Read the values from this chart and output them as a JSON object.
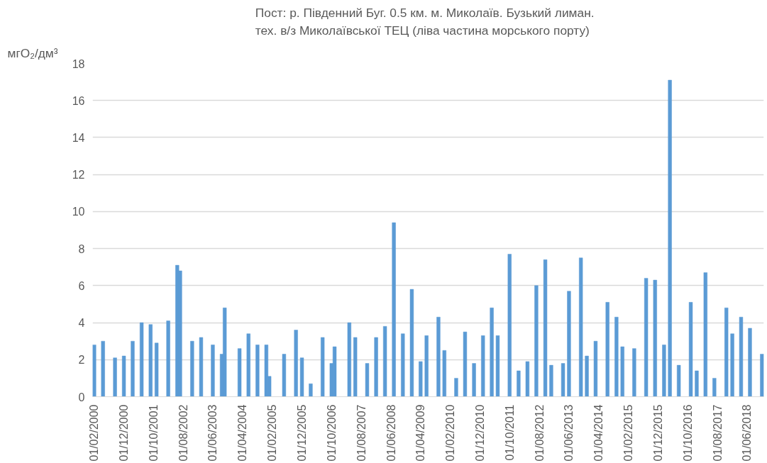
{
  "chart_data": {
    "type": "bar",
    "title": "Пост: р. Південний  Буг. 0.5 км. м. Миколаїв.  Бузький лиман.\nтех. в/з Миколаївської ТЕЦ (ліва частина морського порту)",
    "ylabel": "мгО₂/дм³",
    "x": [
      "2000-02",
      "2000-05",
      "2000-09",
      "2000-12",
      "2001-03",
      "2001-06",
      "2001-09",
      "2001-11",
      "2002-03",
      "2002-06",
      "2002-07",
      "2002-11",
      "2003-02",
      "2003-06",
      "2003-09",
      "2003-10",
      "2004-03",
      "2004-06",
      "2004-09",
      "2004-12",
      "2005-01",
      "2005-06",
      "2005-10",
      "2005-12",
      "2006-03",
      "2006-07",
      "2006-10",
      "2006-11",
      "2007-04",
      "2007-06",
      "2007-10",
      "2008-01",
      "2008-04",
      "2008-07",
      "2008-10",
      "2009-01",
      "2009-04",
      "2009-06",
      "2009-10",
      "2009-12",
      "2010-04",
      "2010-07",
      "2010-10",
      "2011-01",
      "2011-04",
      "2011-06",
      "2011-10",
      "2012-01",
      "2012-04",
      "2012-07",
      "2012-10",
      "2012-12",
      "2013-04",
      "2013-06",
      "2013-10",
      "2013-12",
      "2014-03",
      "2014-07",
      "2014-10",
      "2014-12",
      "2015-04",
      "2015-08",
      "2015-11",
      "2016-02",
      "2016-04",
      "2016-07",
      "2016-11",
      "2017-01",
      "2017-04",
      "2017-07",
      "2017-11",
      "2018-01",
      "2018-04",
      "2018-07",
      "2018-11"
    ],
    "values": [
      2.8,
      3.0,
      2.1,
      2.2,
      3.0,
      4.0,
      3.9,
      2.9,
      4.1,
      7.1,
      6.8,
      3.0,
      3.2,
      2.8,
      2.3,
      4.8,
      2.6,
      3.4,
      2.8,
      2.8,
      1.1,
      2.3,
      3.6,
      2.1,
      0.7,
      3.2,
      1.8,
      2.7,
      4.0,
      3.2,
      1.8,
      3.2,
      3.8,
      9.4,
      3.4,
      5.8,
      1.9,
      3.3,
      4.3,
      2.5,
      1.0,
      3.5,
      1.8,
      3.3,
      4.8,
      3.3,
      7.7,
      1.4,
      1.9,
      6.0,
      7.4,
      1.7,
      1.8,
      5.7,
      7.5,
      2.2,
      3.0,
      5.1,
      4.3,
      2.7,
      2.6,
      6.4,
      6.3,
      2.8,
      17.1,
      1.7,
      5.1,
      1.4,
      6.7,
      1.0,
      4.8,
      3.4,
      4.3,
      3.7,
      2.3
    ],
    "color": "#5b9bd5",
    "xlim": [
      "2000-01-15",
      "2018-11-20"
    ],
    "xticks": [
      {
        "value": "2000-02-01",
        "label": "01/02/2000"
      },
      {
        "value": "2000-12-01",
        "label": "01/12/2000"
      },
      {
        "value": "2001-10-01",
        "label": "01/10/2001"
      },
      {
        "value": "2002-08-01",
        "label": "01/08/2002"
      },
      {
        "value": "2003-06-01",
        "label": "01/06/2003"
      },
      {
        "value": "2004-04-01",
        "label": "01/04/2004"
      },
      {
        "value": "2005-02-01",
        "label": "01/02/2005"
      },
      {
        "value": "2005-12-01",
        "label": "01/12/2005"
      },
      {
        "value": "2006-10-01",
        "label": "01/10/2006"
      },
      {
        "value": "2007-08-01",
        "label": "01/08/2007"
      },
      {
        "value": "2008-06-01",
        "label": "01/06/2008"
      },
      {
        "value": "2009-04-01",
        "label": "01/04/2009"
      },
      {
        "value": "2010-02-01",
        "label": "01/02/2010"
      },
      {
        "value": "2010-12-01",
        "label": "01/12/2010"
      },
      {
        "value": "2011-10-01",
        "label": "01/10/2011"
      },
      {
        "value": "2012-08-01",
        "label": "01/08/2012"
      },
      {
        "value": "2013-06-01",
        "label": "01/06/2013"
      },
      {
        "value": "2014-04-01",
        "label": "01/04/2014"
      },
      {
        "value": "2015-02-01",
        "label": "01/02/2015"
      },
      {
        "value": "2015-12-01",
        "label": "01/12/2015"
      },
      {
        "value": "2016-10-01",
        "label": "01/10/2016"
      },
      {
        "value": "2017-08-01",
        "label": "01/08/2017"
      },
      {
        "value": "2018-06-01",
        "label": "01/06/2018"
      }
    ],
    "ylim": [
      0,
      18
    ],
    "yticks": [
      0,
      2,
      4,
      6,
      8,
      10,
      12,
      14,
      16,
      18
    ],
    "grid": "y"
  }
}
